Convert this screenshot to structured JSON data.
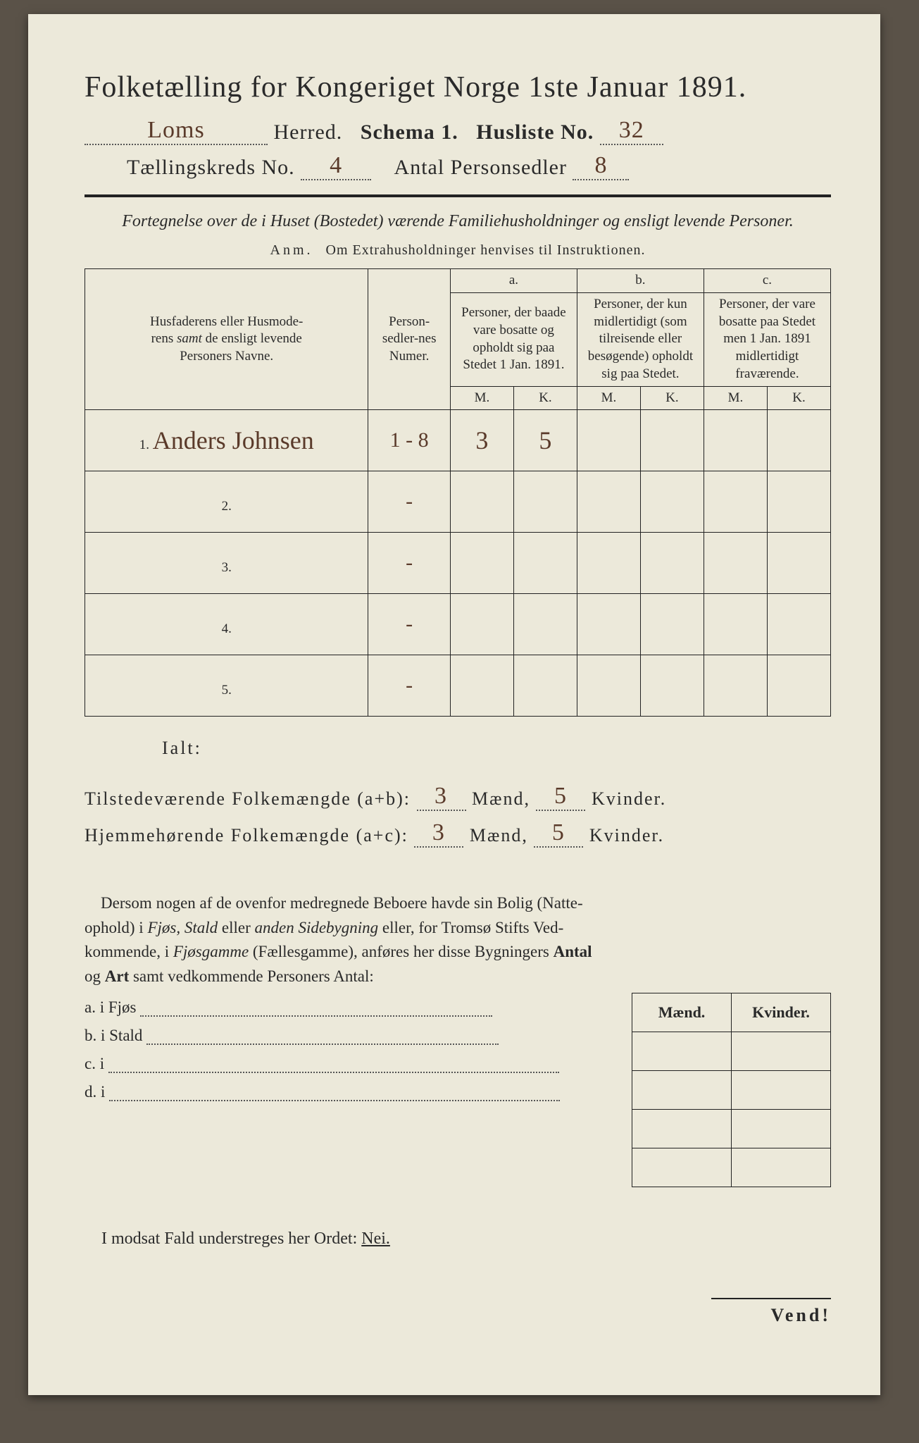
{
  "title": "Folketælling for Kongeriget Norge 1ste Januar 1891.",
  "header": {
    "herred_value": "Loms",
    "herred_label": "Herred.",
    "schema_label": "Schema 1.",
    "husliste_label": "Husliste No.",
    "husliste_value": "32",
    "kreds_label": "Tællingskreds No.",
    "kreds_value": "4",
    "antal_label": "Antal Personsedler",
    "antal_value": "8"
  },
  "subtitle": "Fortegnelse over de i Huset (Bostedet) værende Familiehusholdninger og ensligt levende Personer.",
  "anm_label": "Anm.",
  "anm_text": "Om Extrahusholdninger henvises til Instruktionen.",
  "table": {
    "col_name": "Husfaderens eller Husmoderens samt de ensligt levende Personers Navne.",
    "col_num": "Person-sedler-nes Numer.",
    "col_a_head": "a.",
    "col_a": "Personer, der baade vare bosatte og opholdt sig paa Stedet 1 Jan. 1891.",
    "col_b_head": "b.",
    "col_b": "Personer, der kun midlertidigt (som tilreisende eller besøgende) opholdt sig paa Stedet.",
    "col_c_head": "c.",
    "col_c": "Personer, der vare bosatte paa Stedet men 1 Jan. 1891 midlertidigt fraværende.",
    "M": "M.",
    "K": "K.",
    "rows": [
      {
        "n": "1.",
        "name": "Anders Johnsen",
        "num": "1 - 8",
        "aM": "3",
        "aK": "5",
        "bM": "",
        "bK": "",
        "cM": "",
        "cK": ""
      },
      {
        "n": "2.",
        "name": "",
        "num": "-",
        "aM": "",
        "aK": "",
        "bM": "",
        "bK": "",
        "cM": "",
        "cK": ""
      },
      {
        "n": "3.",
        "name": "",
        "num": "-",
        "aM": "",
        "aK": "",
        "bM": "",
        "bK": "",
        "cM": "",
        "cK": ""
      },
      {
        "n": "4.",
        "name": "",
        "num": "-",
        "aM": "",
        "aK": "",
        "bM": "",
        "bK": "",
        "cM": "",
        "cK": ""
      },
      {
        "n": "5.",
        "name": "",
        "num": "-",
        "aM": "",
        "aK": "",
        "bM": "",
        "bK": "",
        "cM": "",
        "cK": ""
      }
    ]
  },
  "totals": {
    "ialt": "Ialt:",
    "line1_label": "Tilstedeværende Folkemængde (a+b):",
    "line2_label": "Hjemmehørende Folkemængde (a+c):",
    "maend": "Mænd,",
    "kvinder": "Kvinder.",
    "t_m": "3",
    "t_k": "5",
    "h_m": "3",
    "h_k": "5"
  },
  "paragraph": "Dersom nogen af de ovenfor medregnede Beboere havde sin Bolig (Natteophold) i Fjøs, Stald eller anden Sidebygning eller, for Tromsø Stifts Vedkommende, i Fjøsgamme (Fællesgamme), anføres her disse Bygningers Antal og Art samt vedkommende Personers Antal:",
  "mk": {
    "m": "Mænd.",
    "k": "Kvinder."
  },
  "lines": {
    "a": "a.  i      Fjøs",
    "b": "b.  i      Stald",
    "c": "c.  i",
    "d": "d.  i"
  },
  "nei": "I modsat Fald understreges her Ordet: ",
  "nei_word": "Nei.",
  "vend": "Vend!"
}
